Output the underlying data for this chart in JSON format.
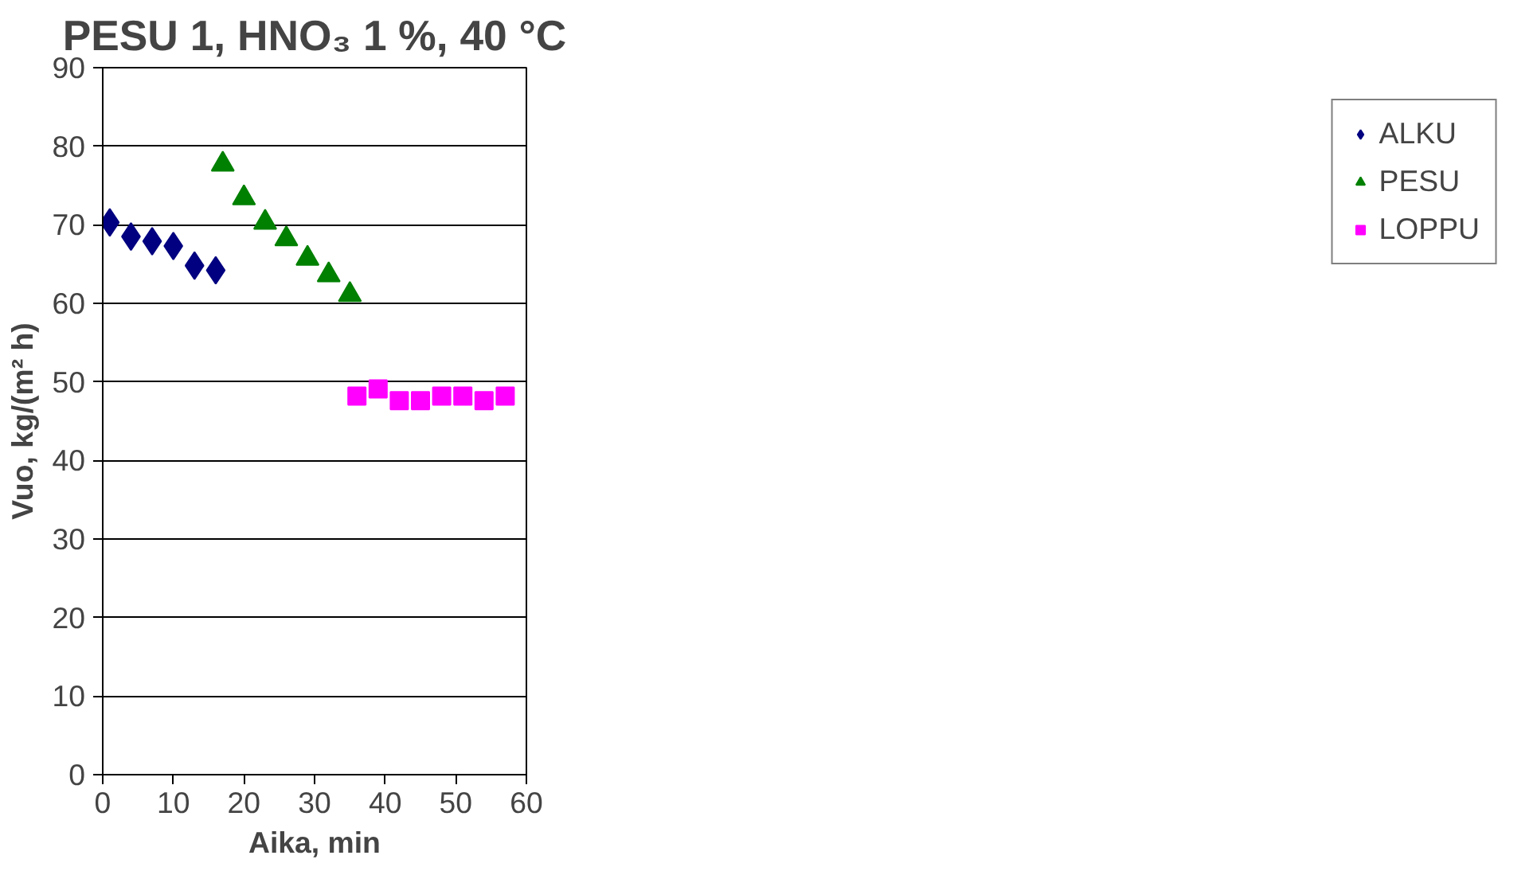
{
  "chart_data": {
    "type": "scatter",
    "title": "PESU 1, HNO₃ 1 %, 40 °C",
    "xlabel": "Aika, min",
    "ylabel": "Vuo, kg/(m² h)",
    "xlim": [
      0,
      60
    ],
    "xticks": [
      0,
      10,
      20,
      30,
      40,
      50,
      60
    ],
    "ylim": [
      0,
      90
    ],
    "yticks": [
      0,
      10,
      20,
      30,
      40,
      50,
      60,
      70,
      80,
      90
    ],
    "grid": "y",
    "legend": "right",
    "series": [
      {
        "name": "ALKU",
        "color": "#000080",
        "marker": "diamond",
        "x": [
          1,
          4,
          7,
          10,
          13,
          16
        ],
        "values": [
          70.3,
          68.5,
          67.9,
          67.3,
          64.8,
          64.2
        ]
      },
      {
        "name": "PESU",
        "color": "#008000",
        "marker": "triangle",
        "x": [
          17,
          20,
          23,
          26,
          29,
          32,
          35
        ],
        "values": [
          77.7,
          73.4,
          70.3,
          68.2,
          65.7,
          63.6,
          61.1
        ]
      },
      {
        "name": "LOPPU",
        "color": "#ff00ff",
        "marker": "square",
        "x": [
          36,
          39,
          42,
          45,
          48,
          51,
          54,
          57
        ],
        "values": [
          48.2,
          49.1,
          47.6,
          47.6,
          48.2,
          48.2,
          47.6,
          48.2
        ]
      }
    ]
  }
}
